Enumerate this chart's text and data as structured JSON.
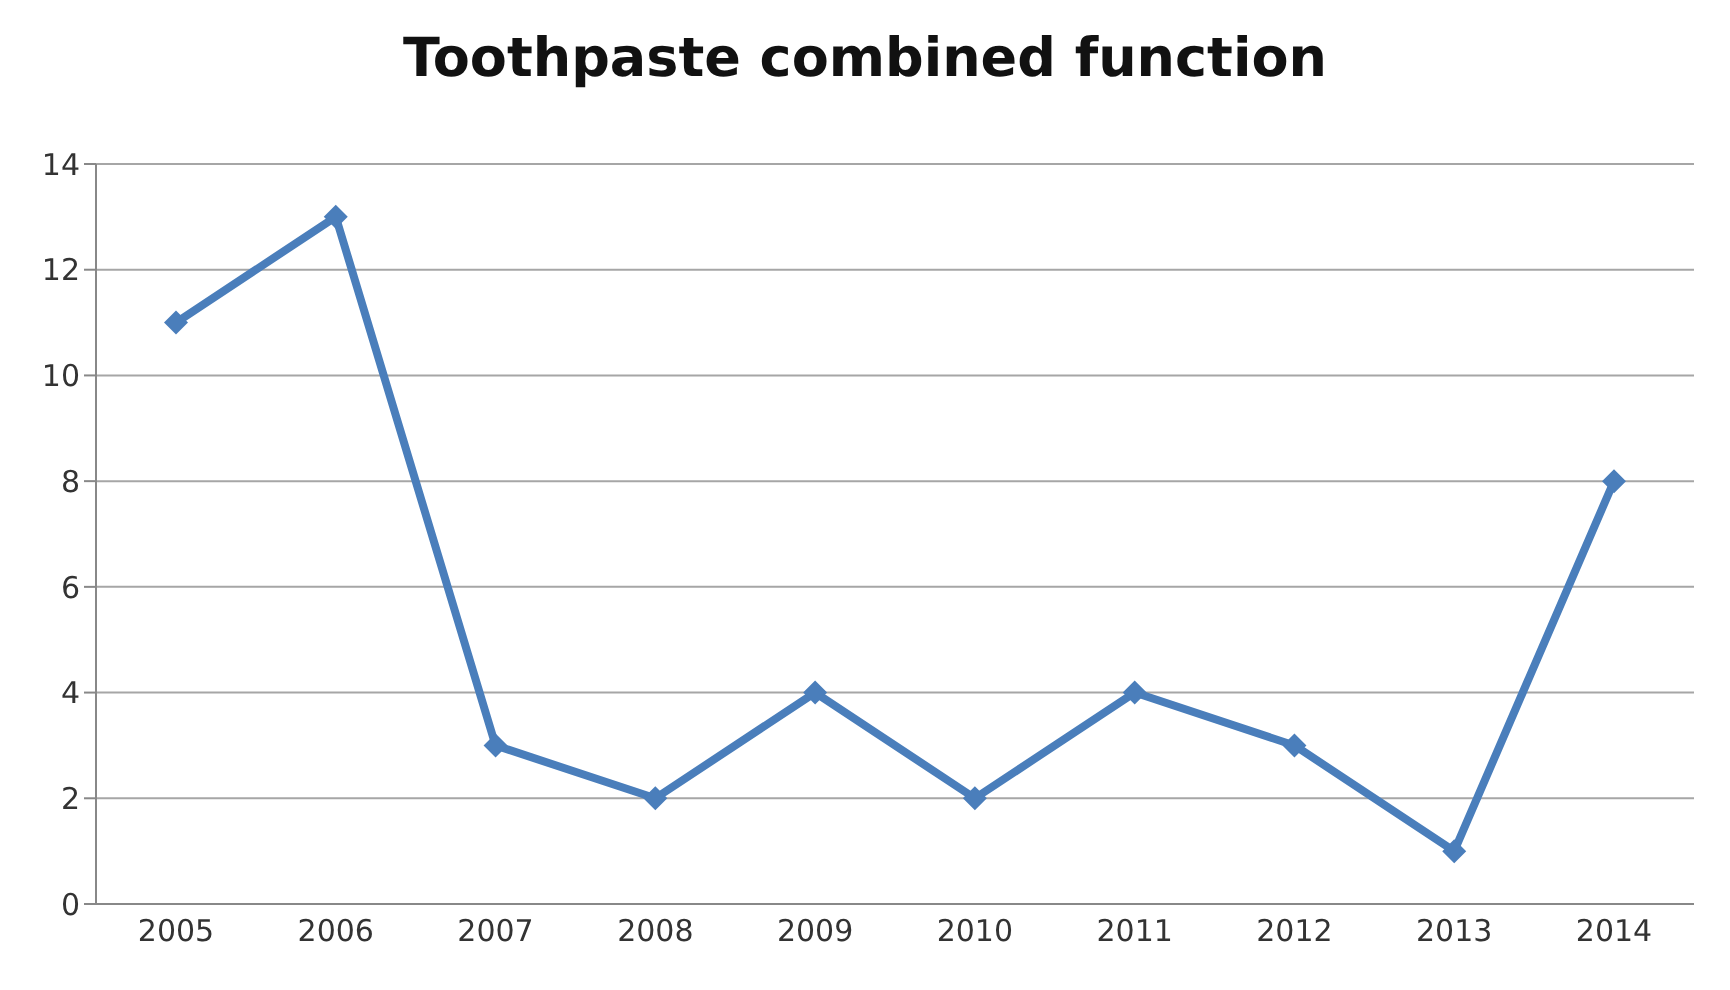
{
  "chart_data": {
    "type": "line",
    "title": "Toothpaste combined function",
    "categories": [
      "2005",
      "2006",
      "2007",
      "2008",
      "2009",
      "2010",
      "2011",
      "2012",
      "2013",
      "2014"
    ],
    "series": [
      {
        "color": "#4a7ebb",
        "values": [
          11,
          13,
          3,
          2,
          4,
          2,
          4,
          3,
          1,
          8
        ]
      }
    ],
    "ylim": [
      0,
      14
    ],
    "yticks": [
      0,
      2,
      4,
      6,
      8,
      10,
      12,
      14
    ],
    "grid": "y",
    "marker": "diamond",
    "line_style": "solid"
  }
}
